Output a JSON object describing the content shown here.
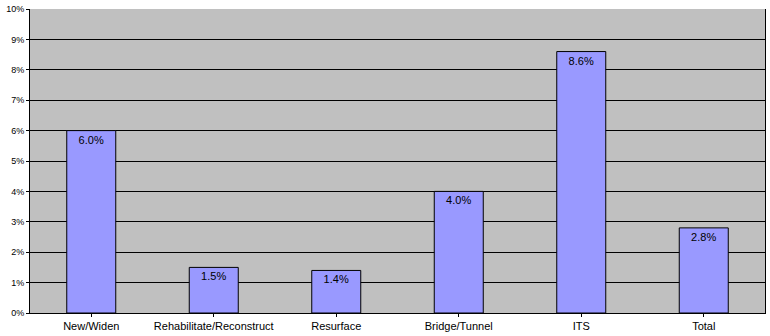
{
  "chart_data": {
    "type": "bar",
    "categories": [
      "New/Widen",
      "Rehabilitate/Reconstruct",
      "Resurface",
      "Bridge/Tunnel",
      "ITS",
      "Total"
    ],
    "values": [
      6.0,
      1.5,
      1.4,
      4.0,
      8.6,
      2.8
    ],
    "value_labels": [
      "6.0%",
      "1.5%",
      "1.4%",
      "4.0%",
      "8.6%",
      "2.8%"
    ],
    "color": "#9999ff",
    "data_labels": true,
    "grid": true,
    "ylim": [
      0,
      10
    ],
    "yticks": [
      {
        "value": 0,
        "label": "0%"
      },
      {
        "value": 1,
        "label": "1%"
      },
      {
        "value": 2,
        "label": "2%"
      },
      {
        "value": 3,
        "label": "3%"
      },
      {
        "value": 4,
        "label": "4%"
      },
      {
        "value": 5,
        "label": "5%"
      },
      {
        "value": 6,
        "label": "6%"
      },
      {
        "value": 7,
        "label": "7%"
      },
      {
        "value": 8,
        "label": "8%"
      },
      {
        "value": 9,
        "label": "9%"
      },
      {
        "value": 10,
        "label": "10%"
      }
    ]
  }
}
